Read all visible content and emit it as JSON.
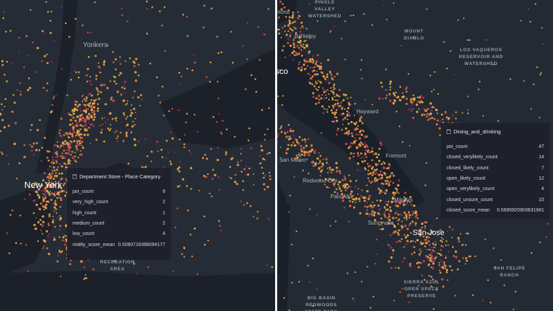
{
  "left_map": {
    "labels": [
      {
        "lines": [
          "Yonkers"
        ]
      },
      {
        "lines": [
          "New York"
        ]
      },
      {
        "lines": [
          "RECREATION",
          "AREA"
        ]
      }
    ]
  },
  "left_tooltip": {
    "title": "Department Store - Place Category",
    "rows": [
      [
        "poi_count",
        9
      ],
      [
        "very_high_count",
        2
      ],
      [
        "high_count",
        1
      ],
      [
        "medium_count",
        2
      ],
      [
        "low_count",
        4
      ],
      [
        "reality_score_mean",
        0.5080718398094177
      ]
    ]
  },
  "right_map": {
    "labels": [
      {
        "lines": [
          "PINOLE",
          "VALLEY",
          "WATERSHED"
        ]
      },
      {
        "lines": [
          "Richmond"
        ]
      },
      {
        "lines": [
          "Berkeley"
        ]
      },
      {
        "lines": [
          "MOUNT",
          "DIABLO"
        ]
      },
      {
        "lines": [
          "LOS VAQUEROS",
          "RESERVOIR AND",
          "WATERSHED"
        ]
      },
      {
        "lines": [
          "San Francisco"
        ]
      },
      {
        "lines": [
          "Hayward"
        ]
      },
      {
        "lines": [
          "San Mateo"
        ]
      },
      {
        "lines": [
          "Redwood City"
        ]
      },
      {
        "lines": [
          "Palo Alto"
        ]
      },
      {
        "lines": [
          "Fremont"
        ]
      },
      {
        "lines": [
          "Milpitas"
        ]
      },
      {
        "lines": [
          "Sunnyvale"
        ]
      },
      {
        "lines": [
          "San Jose"
        ]
      },
      {
        "lines": [
          "SAN FELIPE",
          "RANCH"
        ]
      },
      {
        "lines": [
          "SIERRA AZUL",
          "OPEN SPACE",
          "PRESERVE"
        ]
      },
      {
        "lines": [
          "BIG BASIN",
          "REDWOODS",
          "STATE PARK"
        ]
      }
    ]
  },
  "right_tooltip": {
    "title": "Dining_and_drinking",
    "rows": [
      [
        "poi_count",
        47
      ],
      [
        "closed_verylikely_count",
        14
      ],
      [
        "closed_likely_count",
        7
      ],
      [
        "open_likely_count",
        12
      ],
      [
        "open_verylikely_count",
        4
      ],
      [
        "closed_unsure_count",
        10
      ],
      [
        "closed_score_mean",
        0.5695920903631981
      ]
    ]
  }
}
